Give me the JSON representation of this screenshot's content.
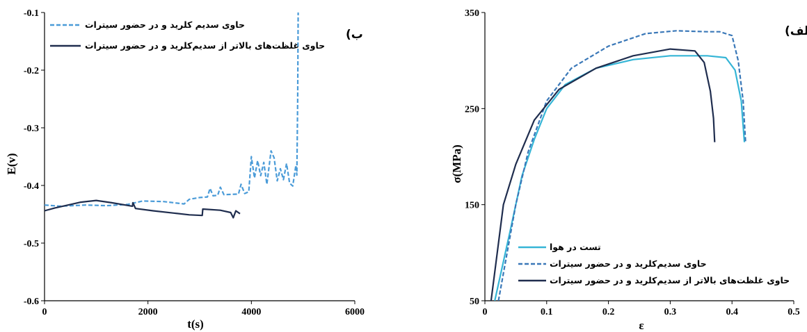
{
  "chart_data": [
    {
      "type": "line",
      "panel_label": "ب)",
      "xlabel": "t(s)",
      "ylabel": "E(v)",
      "xlim": [
        0,
        6000
      ],
      "ylim": [
        -0.6,
        -0.1
      ],
      "x_ticks": [
        "0",
        "2000",
        "4000",
        "6000"
      ],
      "y_ticks": [
        "-0.1",
        "-0.2",
        "-0.3",
        "-0.4",
        "-0.5",
        "-0.6"
      ],
      "legend_position": "top-left",
      "series": [
        {
          "name": "حاوی سدیم کلرید و در حضور سیترات",
          "color": "#4a9bd8",
          "dash": "dashed",
          "points": [
            [
              0,
              -0.434
            ],
            [
              300,
              -0.436
            ],
            [
              800,
              -0.434
            ],
            [
              1200,
              -0.435
            ],
            [
              1600,
              -0.433
            ],
            [
              1900,
              -0.427
            ],
            [
              2300,
              -0.428
            ],
            [
              2700,
              -0.432
            ],
            [
              2800,
              -0.424
            ],
            [
              3000,
              -0.421
            ],
            [
              3150,
              -0.42
            ],
            [
              3200,
              -0.405
            ],
            [
              3260,
              -0.418
            ],
            [
              3350,
              -0.417
            ],
            [
              3400,
              -0.403
            ],
            [
              3470,
              -0.416
            ],
            [
              3750,
              -0.415
            ],
            [
              3800,
              -0.398
            ],
            [
              3870,
              -0.414
            ],
            [
              3950,
              -0.411
            ],
            [
              4000,
              -0.35
            ],
            [
              4060,
              -0.387
            ],
            [
              4120,
              -0.357
            ],
            [
              4180,
              -0.383
            ],
            [
              4240,
              -0.36
            ],
            [
              4300,
              -0.398
            ],
            [
              4380,
              -0.34
            ],
            [
              4440,
              -0.352
            ],
            [
              4500,
              -0.392
            ],
            [
              4560,
              -0.371
            ],
            [
              4620,
              -0.39
            ],
            [
              4680,
              -0.362
            ],
            [
              4740,
              -0.396
            ],
            [
              4800,
              -0.401
            ],
            [
              4860,
              -0.365
            ],
            [
              4880,
              -0.382
            ],
            [
              4895,
              -0.25
            ],
            [
              4905,
              -0.1
            ]
          ]
        },
        {
          "name": "حاوی غلظت‌های بالاتر از سدیم‌کلرید و در حضور سیترات",
          "color": "#1f2d4e",
          "dash": "solid",
          "points": [
            [
              0,
              -0.444
            ],
            [
              200,
              -0.439
            ],
            [
              500,
              -0.433
            ],
            [
              700,
              -0.429
            ],
            [
              1000,
              -0.426
            ],
            [
              1300,
              -0.43
            ],
            [
              1700,
              -0.436
            ],
            [
              1710,
              -0.43
            ],
            [
              1760,
              -0.44
            ],
            [
              2100,
              -0.444
            ],
            [
              2500,
              -0.448
            ],
            [
              2800,
              -0.451
            ],
            [
              3050,
              -0.452
            ],
            [
              3060,
              -0.441
            ],
            [
              3400,
              -0.443
            ],
            [
              3600,
              -0.447
            ],
            [
              3650,
              -0.456
            ],
            [
              3700,
              -0.444
            ],
            [
              3780,
              -0.449
            ]
          ]
        }
      ]
    },
    {
      "type": "line",
      "panel_label": "الف)",
      "xlabel": "ε",
      "ylabel": "σ(MPa)",
      "xlim": [
        0,
        0.5
      ],
      "ylim": [
        50,
        350
      ],
      "x_ticks": [
        "0",
        "0.1",
        "0.2",
        "0.3",
        "0.4",
        "0.5"
      ],
      "y_ticks": [
        "50",
        "150",
        "250",
        "350"
      ],
      "legend_position": "bottom-right",
      "series": [
        {
          "name": "تست در هوا",
          "color": "#35b5d6",
          "dash": "solid",
          "points": [
            [
              0.016,
              50
            ],
            [
              0.04,
              120
            ],
            [
              0.06,
              180
            ],
            [
              0.08,
              218
            ],
            [
              0.1,
              250
            ],
            [
              0.13,
              275
            ],
            [
              0.18,
              292
            ],
            [
              0.24,
              301
            ],
            [
              0.3,
              305
            ],
            [
              0.36,
              305
            ],
            [
              0.39,
              303
            ],
            [
              0.405,
              290
            ],
            [
              0.415,
              258
            ],
            [
              0.42,
              215
            ]
          ]
        },
        {
          "name": "حاوی سدیم‌کلرید و در حضور سیترات",
          "color": "#3a78b8",
          "dash": "dashed",
          "points": [
            [
              0.022,
              50
            ],
            [
              0.05,
              150
            ],
            [
              0.07,
              205
            ],
            [
              0.1,
              258
            ],
            [
              0.14,
              292
            ],
            [
              0.2,
              315
            ],
            [
              0.26,
              328
            ],
            [
              0.31,
              331
            ],
            [
              0.36,
              330
            ],
            [
              0.38,
              330
            ],
            [
              0.4,
              326
            ],
            [
              0.41,
              300
            ],
            [
              0.418,
              258
            ],
            [
              0.422,
              215
            ]
          ]
        },
        {
          "name": "حاوی غلظت‌های بالاتر از سدیم‌کلرید و در حضور سیترات",
          "color": "#1f2d4e",
          "dash": "solid",
          "points": [
            [
              0.01,
              50
            ],
            [
              0.03,
              150
            ],
            [
              0.05,
              192
            ],
            [
              0.08,
              238
            ],
            [
              0.12,
              270
            ],
            [
              0.18,
              292
            ],
            [
              0.24,
              305
            ],
            [
              0.3,
              312
            ],
            [
              0.34,
              310
            ],
            [
              0.355,
              298
            ],
            [
              0.365,
              268
            ],
            [
              0.37,
              240
            ],
            [
              0.372,
              215
            ]
          ]
        }
      ]
    }
  ]
}
